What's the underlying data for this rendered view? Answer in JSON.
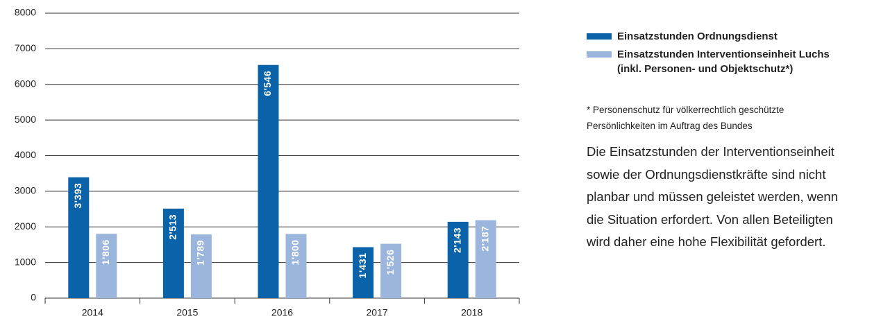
{
  "chart_data": {
    "type": "bar",
    "categories": [
      "2014",
      "2015",
      "2016",
      "2017",
      "2018"
    ],
    "series": [
      {
        "name": "Einsatzstunden Ordnungsdienst",
        "color": "#0a62a9",
        "values": [
          3393,
          2513,
          6546,
          1431,
          2143
        ],
        "value_labels": [
          "3'393",
          "2'513",
          "6'546",
          "1'431",
          "2'143"
        ]
      },
      {
        "name": "Einsatzstunden Interventionseinheit Luchs\n(inkl. Personen- und Objektschutz*)",
        "color": "#9bb5dc",
        "values": [
          1806,
          1789,
          1800,
          1526,
          2187
        ],
        "value_labels": [
          "1'806",
          "1'789",
          "1'800",
          "1'526",
          "2'187"
        ]
      }
    ],
    "ylim": [
      0,
      8000
    ],
    "yticks": [
      0,
      1000,
      2000,
      3000,
      4000,
      5000,
      6000,
      7000,
      8000
    ],
    "grid": true,
    "footnote": "* Personenschutz für völkerrechtlich geschützte\nPersönlichkeiten im Auftrag des Bundes",
    "text": "Die Einsatzstunden der Interventionseinheit\nsowie der Ordnungsdienstkräfte sind nicht\nplanbar und müssen geleistet werden, wenn\ndie Situation erfordert. Von allen Beteiligten\nwird daher eine hohe Flexibilität gefordert."
  }
}
